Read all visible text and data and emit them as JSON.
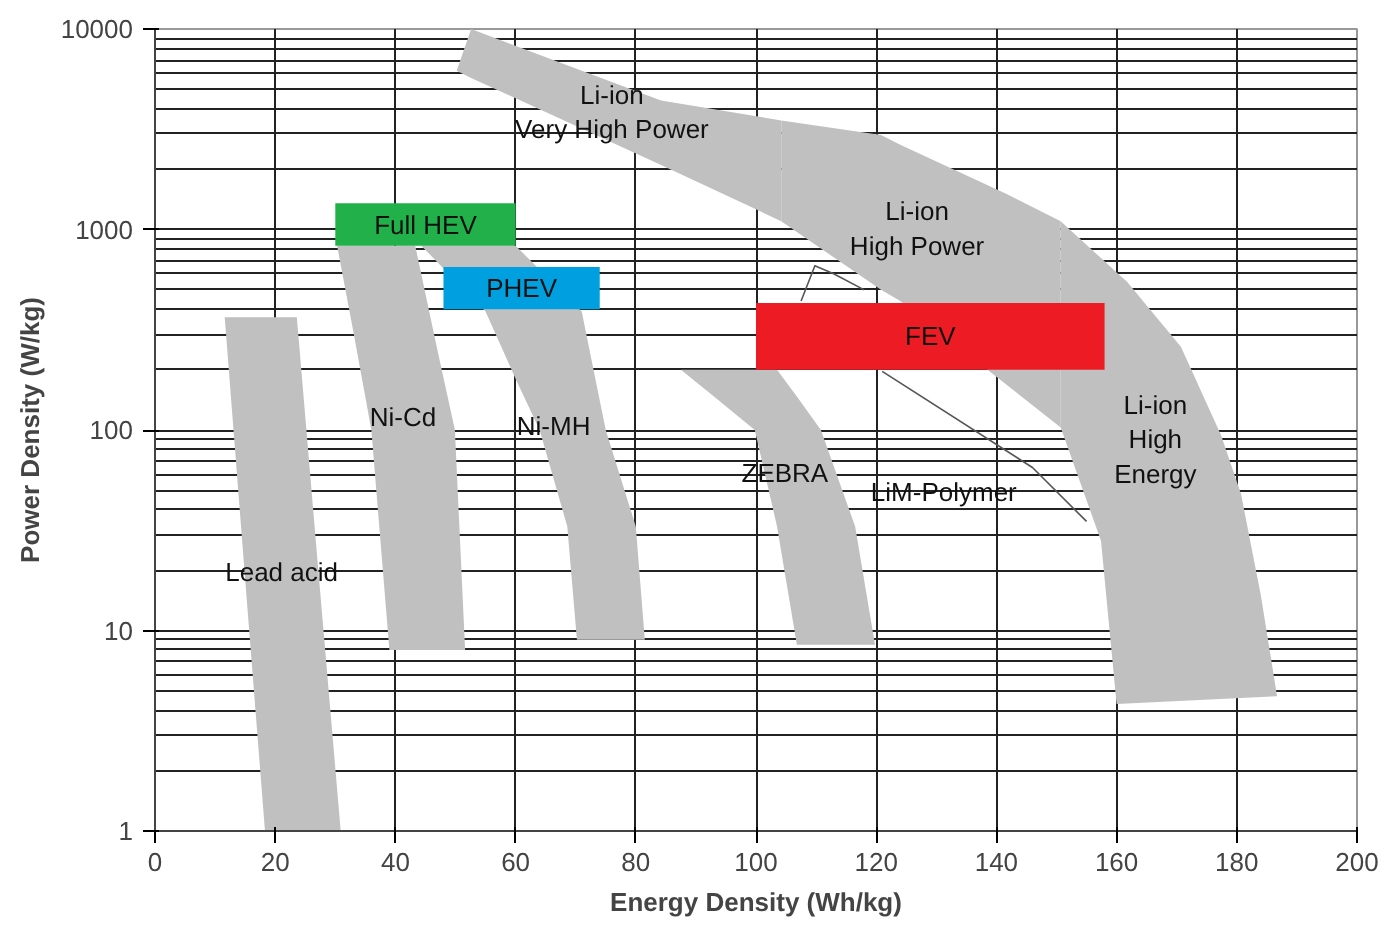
{
  "chart_data": {
    "type": "area",
    "xlabel": "Energy Density (Wh/kg)",
    "ylabel": "Power Density (W/kg)",
    "log": "y",
    "grid": true,
    "xlim": [
      0,
      200
    ],
    "xticks": [
      0,
      20,
      40,
      60,
      80,
      100,
      120,
      140,
      160,
      180,
      200
    ],
    "ylim": [
      1,
      10000
    ],
    "yticks": [
      1,
      10,
      100,
      1000,
      10000
    ],
    "series": [
      {
        "name": "LiM-Polymer",
        "type": "line",
        "color": "#555555",
        "x": [
          107.5,
          109.8,
          113,
          118,
          120,
          121,
          146,
          155
        ],
        "values": [
          440,
          660,
          600,
          500,
          null,
          196,
          65,
          35
        ]
      },
      {
        "name": "Lead acid",
        "color": "#c0c0c0",
        "x": [
          11.6,
          23.6,
          27,
          30.9,
          18.3,
          15
        ],
        "values": [
          365,
          365,
          23,
          1,
          1,
          18
        ]
      },
      {
        "name": "Ni-Cd",
        "color": "#c0c0c0",
        "x": [
          30.3,
          43.3,
          47,
          49.9,
          51.6,
          39,
          36,
          33
        ],
        "values": [
          830,
          830,
          250,
          100,
          8,
          8,
          100,
          310
        ]
      },
      {
        "name": "Ni-MH",
        "color": "#c0c0c0",
        "x": [
          44.3,
          60,
          71,
          75,
          80,
          81.5,
          70.2,
          68.6,
          64,
          60,
          55
        ],
        "values": [
          830,
          830,
          390,
          100,
          33,
          9,
          9,
          33,
          100,
          180,
          390
        ]
      },
      {
        "name": "ZEBRA",
        "color": "#c0c0c0",
        "x": [
          87.5,
          103.5,
          106.8,
          110.8,
          116.5,
          119.8,
          106.8,
          103.5,
          99.8,
          93
        ],
        "values": [
          200,
          200,
          147,
          100,
          33,
          8.5,
          8.5,
          33,
          100,
          147
        ]
      },
      {
        "name": "Li-ion\nVery High Power",
        "color": "#c0c0c0",
        "x": [
          50.2,
          52.6,
          84.2,
          104.2,
          104.2,
          84.2,
          52.6
        ],
        "values": [
          6200,
          10000,
          4400,
          3500,
          1100,
          2100,
          5700
        ]
      },
      {
        "name": "Li-ion\nHigh Power",
        "color": "#c0c0c0",
        "x": [
          104.2,
          120.8,
          124,
          141.8,
          150.7,
          150.7,
          124,
          120.8,
          104.2
        ],
        "values": [
          3500,
          2960,
          2650,
          1500,
          1100,
          103,
          440,
          500,
          1100
        ]
      },
      {
        "name": "Li-ion\nHigh\nEnergy",
        "color": "#c0c0c0",
        "x": [
          150.7,
          157.4,
          160,
          161.7,
          170.7,
          177.4,
          180.7,
          184,
          186.7,
          160,
          157.4,
          150.7
        ],
        "values": [
          1100,
          720,
          610,
          550,
          260,
          94,
          48,
          15,
          4.7,
          4.3,
          28,
          103
        ]
      },
      {
        "name": "Full HEV",
        "color": "#22b04b",
        "x": [
          30,
          60,
          60,
          30
        ],
        "values": [
          830,
          830,
          1350,
          1350
        ]
      },
      {
        "name": "PHEV",
        "color": "#00a0e0",
        "x": [
          48,
          74,
          74,
          48
        ],
        "values": [
          400,
          400,
          650,
          650
        ]
      },
      {
        "name": "FEV",
        "color": "#ed1c24",
        "x": [
          100,
          158,
          158,
          100
        ],
        "values": [
          200,
          200,
          430,
          430
        ]
      }
    ]
  }
}
